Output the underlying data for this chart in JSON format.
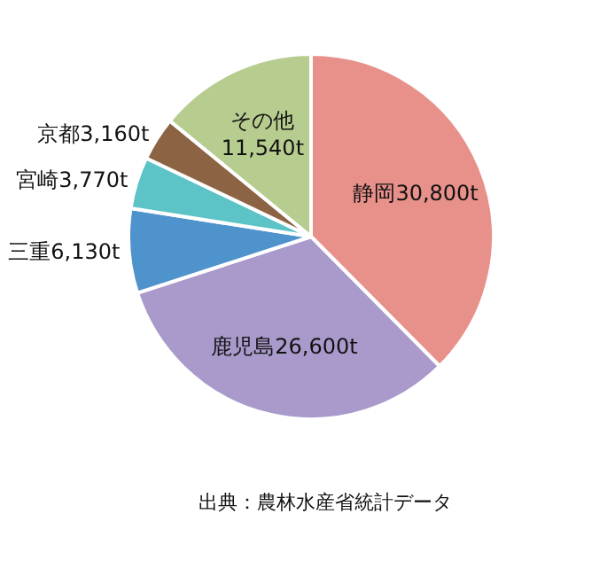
{
  "chart_data": {
    "type": "pie",
    "categories": [
      "静岡",
      "鹿児島",
      "三重",
      "宮崎",
      "京都",
      "その他"
    ],
    "values": [
      30800,
      26600,
      6130,
      3770,
      3160,
      11540
    ],
    "value_labels": [
      "30,800t",
      "26,600t",
      "6,130t",
      "3,770t",
      "3,160t",
      "11,540t"
    ],
    "colors": [
      "#e8908a",
      "#a99acb",
      "#4f93cc",
      "#5cc3c6",
      "#8c6444",
      "#b7cc8f"
    ],
    "annotations": [
      "出典：農林水産省統計データ"
    ]
  }
}
